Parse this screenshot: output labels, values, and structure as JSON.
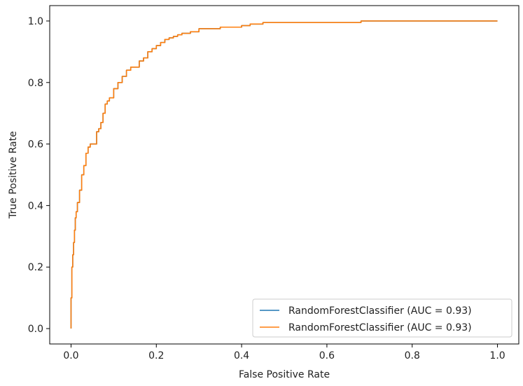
{
  "chart_data": {
    "type": "line",
    "xlabel": "False Positive Rate",
    "ylabel": "True Positive Rate",
    "xlim": [
      -0.05,
      1.05
    ],
    "ylim": [
      -0.05,
      1.05
    ],
    "x_ticks": [
      0.0,
      0.2,
      0.4,
      0.6,
      0.8,
      1.0
    ],
    "y_ticks": [
      0.0,
      0.2,
      0.4,
      0.6,
      0.8,
      1.0
    ],
    "x_tick_labels": [
      "0.0",
      "0.2",
      "0.4",
      "0.6",
      "0.8",
      "1.0"
    ],
    "y_tick_labels": [
      "0.0",
      "0.2",
      "0.4",
      "0.6",
      "0.8",
      "1.0"
    ],
    "grid": false,
    "legend_position": "lower-right",
    "series": [
      {
        "name": "RandomForestClassifier (AUC = 0.93)",
        "color": "#1f77b4",
        "x": [
          0.0,
          0.0,
          0.002,
          0.004,
          0.006,
          0.008,
          0.01,
          0.012,
          0.015,
          0.02,
          0.025,
          0.03,
          0.035,
          0.04,
          0.045,
          0.05,
          0.06,
          0.065,
          0.07,
          0.075,
          0.08,
          0.085,
          0.09,
          0.1,
          0.11,
          0.12,
          0.13,
          0.14,
          0.16,
          0.17,
          0.18,
          0.19,
          0.2,
          0.21,
          0.22,
          0.23,
          0.24,
          0.25,
          0.26,
          0.28,
          0.3,
          0.32,
          0.35,
          0.4,
          0.42,
          0.45,
          0.5,
          0.55,
          0.6,
          0.65,
          0.68,
          0.8,
          0.9,
          1.0
        ],
        "y": [
          0.0,
          0.1,
          0.2,
          0.24,
          0.28,
          0.32,
          0.36,
          0.38,
          0.41,
          0.45,
          0.5,
          0.53,
          0.57,
          0.59,
          0.6,
          0.6,
          0.64,
          0.65,
          0.67,
          0.7,
          0.73,
          0.74,
          0.75,
          0.78,
          0.8,
          0.82,
          0.84,
          0.85,
          0.87,
          0.88,
          0.9,
          0.91,
          0.92,
          0.93,
          0.94,
          0.945,
          0.95,
          0.955,
          0.96,
          0.965,
          0.975,
          0.975,
          0.98,
          0.985,
          0.99,
          0.995,
          0.995,
          0.995,
          0.995,
          0.995,
          1.0,
          1.0,
          1.0,
          1.0
        ]
      },
      {
        "name": "RandomForestClassifier (AUC = 0.93)",
        "color": "#ff7f0e",
        "x": [
          0.0,
          0.0,
          0.002,
          0.004,
          0.006,
          0.008,
          0.01,
          0.012,
          0.015,
          0.02,
          0.025,
          0.03,
          0.035,
          0.04,
          0.045,
          0.05,
          0.06,
          0.065,
          0.07,
          0.075,
          0.08,
          0.085,
          0.09,
          0.1,
          0.11,
          0.12,
          0.13,
          0.14,
          0.16,
          0.17,
          0.18,
          0.19,
          0.2,
          0.21,
          0.22,
          0.23,
          0.24,
          0.25,
          0.26,
          0.28,
          0.3,
          0.32,
          0.35,
          0.4,
          0.42,
          0.45,
          0.5,
          0.55,
          0.6,
          0.65,
          0.68,
          0.8,
          0.9,
          1.0
        ],
        "y": [
          0.0,
          0.1,
          0.2,
          0.24,
          0.28,
          0.32,
          0.36,
          0.38,
          0.41,
          0.45,
          0.5,
          0.53,
          0.57,
          0.59,
          0.6,
          0.6,
          0.64,
          0.65,
          0.67,
          0.7,
          0.73,
          0.74,
          0.75,
          0.78,
          0.8,
          0.82,
          0.84,
          0.85,
          0.87,
          0.88,
          0.9,
          0.91,
          0.92,
          0.93,
          0.94,
          0.945,
          0.95,
          0.955,
          0.96,
          0.965,
          0.975,
          0.975,
          0.98,
          0.985,
          0.99,
          0.995,
          0.995,
          0.995,
          0.995,
          0.995,
          1.0,
          1.0,
          1.0,
          1.0
        ]
      }
    ]
  }
}
